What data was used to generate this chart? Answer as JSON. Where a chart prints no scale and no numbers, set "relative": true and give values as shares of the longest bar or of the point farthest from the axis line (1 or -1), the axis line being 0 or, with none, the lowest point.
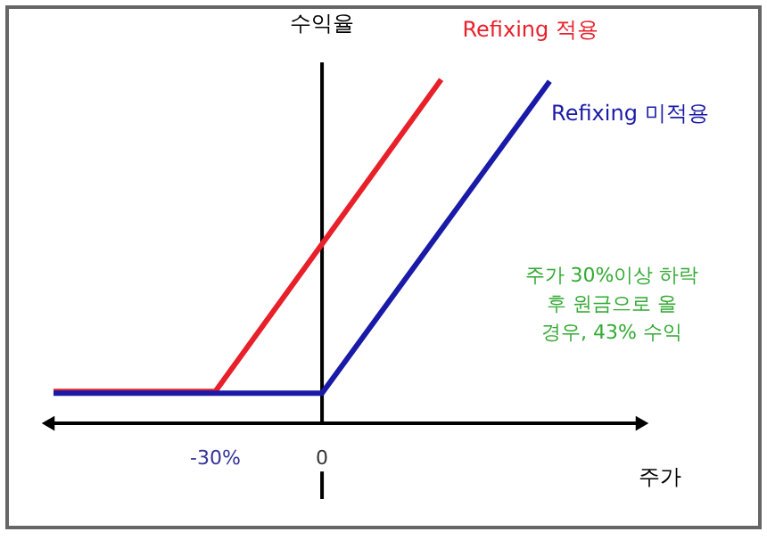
{
  "chart_data": {
    "type": "line",
    "relative": true,
    "xlabel": "주가",
    "ylabel": "수익율",
    "series": [
      {
        "name": "Refixing 적용",
        "color": "#e8202a",
        "x": [
          -75.5,
          -30,
          33.5
        ],
        "values": [
          0.093,
          0.093,
          1.0
        ]
      },
      {
        "name": "Refixing 미적용",
        "color": "#1a1aa8",
        "x": [
          -75.5,
          0,
          64
        ],
        "values": [
          0.088,
          0.088,
          0.995
        ]
      }
    ],
    "xlim": [
      -77,
      90
    ],
    "xticks": [
      {
        "value": -30,
        "label": "-30%"
      },
      0
    ],
    "annotations": [
      "주가 30%이상 하락 후 원금으로 올 경우, 43% 수익"
    ],
    "legend": false,
    "marker": "none",
    "line_style": "solid"
  }
}
